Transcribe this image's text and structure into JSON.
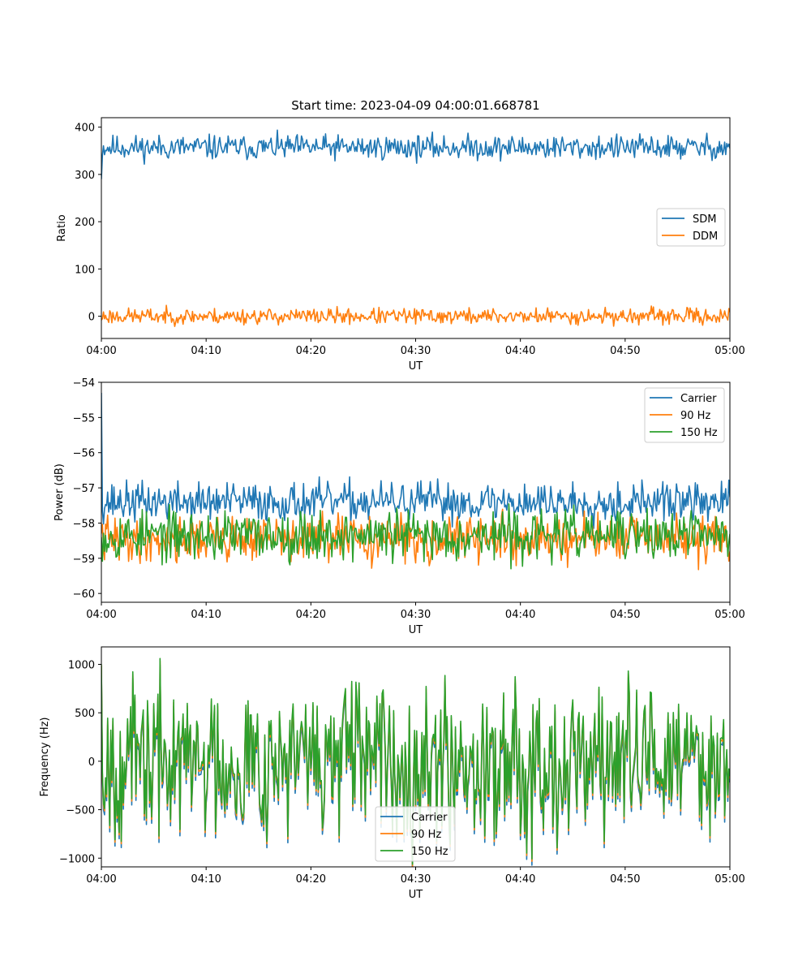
{
  "chart_data": [
    {
      "type": "line",
      "title": "Start time: 2023-04-09 04:00:01.668781",
      "xlabel": "UT",
      "ylabel": "Ratio",
      "x_ticks": [
        "04:00",
        "04:10",
        "04:20",
        "04:30",
        "04:40",
        "04:50",
        "05:00"
      ],
      "x_range_minutes": [
        0,
        60
      ],
      "ylim": [
        -47,
        420
      ],
      "y_ticks": [
        0,
        100,
        200,
        300,
        400
      ],
      "y_tick_labels": [
        "0",
        "100",
        "200",
        "300",
        "400"
      ],
      "legend_position": "center-right",
      "series": [
        {
          "name": "SDM",
          "color": "#1f77b4",
          "mean": 357,
          "amplitude": 14,
          "start": 290,
          "seed": 11
        },
        {
          "name": "DDM",
          "color": "#ff7f0e",
          "mean": 0,
          "amplitude": 9,
          "start": -8,
          "seed": 23
        }
      ]
    },
    {
      "type": "line",
      "title": "",
      "xlabel": "UT",
      "ylabel": "Power (dB)",
      "x_ticks": [
        "04:00",
        "04:10",
        "04:20",
        "04:30",
        "04:40",
        "04:50",
        "05:00"
      ],
      "x_range_minutes": [
        0,
        60
      ],
      "ylim": [
        -60.25,
        -54
      ],
      "y_ticks": [
        -60,
        -59,
        -58,
        -57,
        -56,
        -55,
        -54
      ],
      "y_tick_labels": [
        "−60",
        "−59",
        "−58",
        "−57",
        "−56",
        "−55",
        "−54"
      ],
      "legend_position": "top-right",
      "series": [
        {
          "name": "Carrier",
          "color": "#1f77b4",
          "mean": -57.4,
          "amplitude": 0.3,
          "start": -54.3,
          "seed": 37
        },
        {
          "name": "90 Hz",
          "color": "#ff7f0e",
          "mean": -58.45,
          "amplitude": 0.35,
          "start": -58.3,
          "seed": 41
        },
        {
          "name": "150 Hz",
          "color": "#2ca02c",
          "mean": -58.35,
          "amplitude": 0.38,
          "start": -58.4,
          "seed": 53
        }
      ]
    },
    {
      "type": "line",
      "title": "",
      "xlabel": "UT",
      "ylabel": "Frequency (Hz)",
      "x_ticks": [
        "04:00",
        "04:10",
        "04:20",
        "04:30",
        "04:40",
        "04:50",
        "05:00"
      ],
      "x_range_minutes": [
        0,
        60
      ],
      "ylim": [
        -1090,
        1180
      ],
      "y_ticks": [
        -1000,
        -500,
        0,
        500,
        1000
      ],
      "y_tick_labels": [
        "−1000",
        "−500",
        "0",
        "500",
        "1000"
      ],
      "legend_position": "bottom-center",
      "series": [
        {
          "name": "Carrier",
          "color": "#1f77b4",
          "mean": -40,
          "amplitude": 420,
          "start": 980,
          "seed": 67
        },
        {
          "name": "90 Hz",
          "color": "#ff7f0e",
          "mean": 0,
          "amplitude": 420,
          "start": 990,
          "seed": 67
        },
        {
          "name": "150 Hz",
          "color": "#2ca02c",
          "mean": 25,
          "amplitude": 420,
          "start": 1000,
          "seed": 67
        }
      ]
    }
  ]
}
